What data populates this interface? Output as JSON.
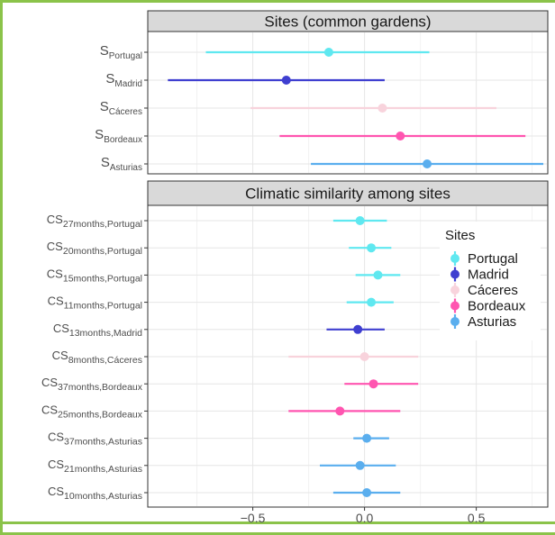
{
  "colors": {
    "Portugal": "#5fe8f0",
    "Madrid": "#3f3fd0",
    "Cáceres": "#f8d3dc",
    "Bordeaux": "#ff55b0",
    "Asturias": "#5aaeee",
    "strip_bg": "#d9d9d9",
    "frame": "#8bc34a"
  },
  "legend": {
    "title": "Sites",
    "placement": "right, inside lower panel"
  },
  "chart_data": [
    {
      "type": "scatter",
      "subtype": "point-range",
      "title": "Sites (common gardens)",
      "xlim": [
        -0.97,
        0.82
      ],
      "x_ticks": [
        -0.5,
        0.0,
        0.5
      ],
      "x_tick_labels": [
        "−0.5",
        "0.0",
        "0.5"
      ],
      "grid": true,
      "rows": [
        {
          "base": "S",
          "sub": "Portugal",
          "site": "Portugal",
          "estimate": -0.16,
          "lower": -0.71,
          "upper": 0.29
        },
        {
          "base": "S",
          "sub": "Madrid",
          "site": "Madrid",
          "estimate": -0.35,
          "lower": -0.88,
          "upper": 0.09
        },
        {
          "base": "S",
          "sub": "Cáceres",
          "site": "Cáceres",
          "estimate": 0.08,
          "lower": -0.51,
          "upper": 0.59
        },
        {
          "base": "S",
          "sub": "Bordeaux",
          "site": "Bordeaux",
          "estimate": 0.16,
          "lower": -0.38,
          "upper": 0.72
        },
        {
          "base": "S",
          "sub": "Asturias",
          "site": "Asturias",
          "estimate": 0.28,
          "lower": -0.24,
          "upper": 0.8
        }
      ]
    },
    {
      "type": "scatter",
      "subtype": "point-range",
      "title": "Climatic similarity among sites",
      "xlim": [
        -0.97,
        0.82
      ],
      "x_ticks": [
        -0.5,
        0.0,
        0.5
      ],
      "x_tick_labels": [
        "−0.5",
        "0.0",
        "0.5"
      ],
      "grid": true,
      "rows": [
        {
          "base": "CS",
          "sub": "27months,Portugal",
          "site": "Portugal",
          "estimate": -0.02,
          "lower": -0.14,
          "upper": 0.1
        },
        {
          "base": "CS",
          "sub": "20months,Portugal",
          "site": "Portugal",
          "estimate": 0.03,
          "lower": -0.07,
          "upper": 0.12
        },
        {
          "base": "CS",
          "sub": "15months,Portugal",
          "site": "Portugal",
          "estimate": 0.06,
          "lower": -0.04,
          "upper": 0.16
        },
        {
          "base": "CS",
          "sub": "11months,Portugal",
          "site": "Portugal",
          "estimate": 0.03,
          "lower": -0.08,
          "upper": 0.13
        },
        {
          "base": "CS",
          "sub": "13months,Madrid",
          "site": "Madrid",
          "estimate": -0.03,
          "lower": -0.17,
          "upper": 0.09
        },
        {
          "base": "CS",
          "sub": "8months,Cáceres",
          "site": "Cáceres",
          "estimate": 0.0,
          "lower": -0.34,
          "upper": 0.24
        },
        {
          "base": "CS",
          "sub": "37months,Bordeaux",
          "site": "Bordeaux",
          "estimate": 0.04,
          "lower": -0.09,
          "upper": 0.24
        },
        {
          "base": "CS",
          "sub": "25months,Bordeaux",
          "site": "Bordeaux",
          "estimate": -0.11,
          "lower": -0.34,
          "upper": 0.16
        },
        {
          "base": "CS",
          "sub": "37months,Asturias",
          "site": "Asturias",
          "estimate": 0.01,
          "lower": -0.05,
          "upper": 0.11
        },
        {
          "base": "CS",
          "sub": "21months,Asturias",
          "site": "Asturias",
          "estimate": -0.02,
          "lower": -0.2,
          "upper": 0.14
        },
        {
          "base": "CS",
          "sub": "10months,Asturias",
          "site": "Asturias",
          "estimate": 0.01,
          "lower": -0.14,
          "upper": 0.16
        }
      ]
    }
  ]
}
